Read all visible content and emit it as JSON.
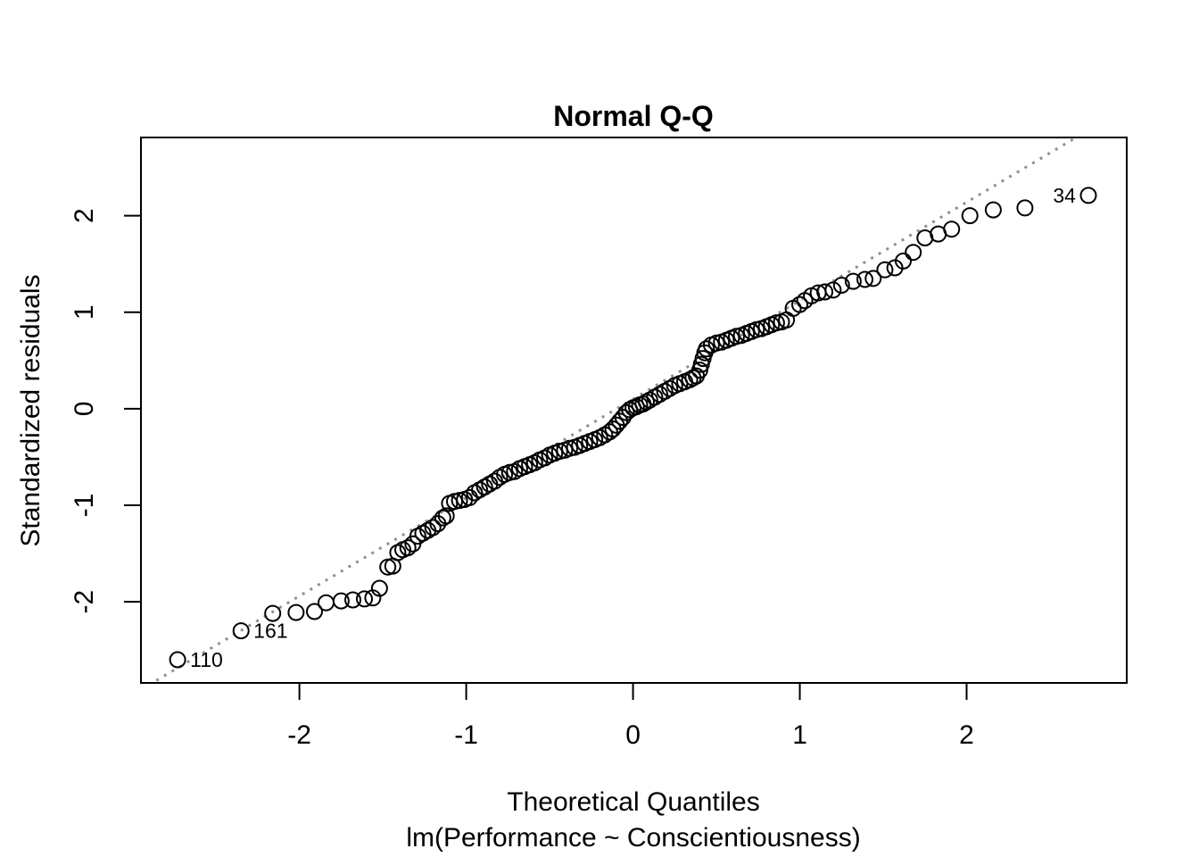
{
  "chart_data": {
    "type": "scatter",
    "title": "Normal Q-Q",
    "xlabel": "Theoretical Quantiles",
    "ylabel": "Standardized residuals",
    "subtitle": "lm(Performance ~ Conscientiousness)",
    "xlim": [
      -2.95,
      2.96
    ],
    "ylim": [
      -2.84,
      2.81
    ],
    "x_ticks": [
      -2,
      -1,
      0,
      1,
      2
    ],
    "y_ticks": [
      -2,
      -1,
      0,
      1,
      2
    ],
    "grid": false,
    "legend": null,
    "colors": {
      "point_stroke": "#000000",
      "reference_line": "#909090",
      "text": "#000000",
      "background": "#ffffff"
    },
    "marker": {
      "shape": "open-circle",
      "radius_px": 8.5,
      "stroke_width": 2
    },
    "reference_line": {
      "style": "dotted",
      "slope": 1.02,
      "intercept": 0.1
    },
    "labeled_points": [
      {
        "label": "110",
        "x": -2.73,
        "y": -2.6,
        "side": "right"
      },
      {
        "label": "161",
        "x": -2.35,
        "y": -2.3,
        "side": "right"
      },
      {
        "label": "34",
        "x": 2.73,
        "y": 2.21,
        "side": "left"
      }
    ],
    "points": [
      [
        -2.73,
        -2.6
      ],
      [
        -2.35,
        -2.3
      ],
      [
        -2.16,
        -2.12
      ],
      [
        -2.02,
        -2.11
      ],
      [
        -1.91,
        -2.1
      ],
      [
        -1.84,
        -2.01
      ],
      [
        -1.75,
        -1.99
      ],
      [
        -1.68,
        -1.98
      ],
      [
        -1.61,
        -1.97
      ],
      [
        -1.56,
        -1.96
      ],
      [
        -1.52,
        -1.86
      ],
      [
        -1.47,
        -1.64
      ],
      [
        -1.44,
        -1.63
      ],
      [
        -1.41,
        -1.49
      ],
      [
        -1.38,
        -1.46
      ],
      [
        -1.35,
        -1.44
      ],
      [
        -1.32,
        -1.4
      ],
      [
        -1.29,
        -1.32
      ],
      [
        -1.26,
        -1.29
      ],
      [
        -1.23,
        -1.26
      ],
      [
        -1.2,
        -1.23
      ],
      [
        -1.17,
        -1.19
      ],
      [
        -1.14,
        -1.13
      ],
      [
        -1.12,
        -1.11
      ],
      [
        -1.1,
        -0.98
      ],
      [
        -1.07,
        -0.96
      ],
      [
        -1.04,
        -0.95
      ],
      [
        -1.01,
        -0.94
      ],
      [
        -0.98,
        -0.92
      ],
      [
        -0.95,
        -0.87
      ],
      [
        -0.92,
        -0.84
      ],
      [
        -0.89,
        -0.81
      ],
      [
        -0.86,
        -0.78
      ],
      [
        -0.83,
        -0.75
      ],
      [
        -0.8,
        -0.71
      ],
      [
        -0.77,
        -0.68
      ],
      [
        -0.74,
        -0.66
      ],
      [
        -0.71,
        -0.65
      ],
      [
        -0.68,
        -0.62
      ],
      [
        -0.65,
        -0.6
      ],
      [
        -0.62,
        -0.58
      ],
      [
        -0.59,
        -0.56
      ],
      [
        -0.56,
        -0.53
      ],
      [
        -0.53,
        -0.51
      ],
      [
        -0.5,
        -0.48
      ],
      [
        -0.47,
        -0.46
      ],
      [
        -0.44,
        -0.44
      ],
      [
        -0.41,
        -0.43
      ],
      [
        -0.38,
        -0.41
      ],
      [
        -0.35,
        -0.4
      ],
      [
        -0.32,
        -0.38
      ],
      [
        -0.29,
        -0.36
      ],
      [
        -0.26,
        -0.34
      ],
      [
        -0.23,
        -0.32
      ],
      [
        -0.2,
        -0.3
      ],
      [
        -0.17,
        -0.27
      ],
      [
        -0.14,
        -0.24
      ],
      [
        -0.12,
        -0.21
      ],
      [
        -0.1,
        -0.17
      ],
      [
        -0.08,
        -0.13
      ],
      [
        -0.06,
        -0.09
      ],
      [
        -0.04,
        -0.04
      ],
      [
        -0.02,
        -0.01
      ],
      [
        0.0,
        0.01
      ],
      [
        0.02,
        0.02
      ],
      [
        0.04,
        0.04
      ],
      [
        0.06,
        0.05
      ],
      [
        0.08,
        0.07
      ],
      [
        0.1,
        0.09
      ],
      [
        0.13,
        0.12
      ],
      [
        0.16,
        0.15
      ],
      [
        0.19,
        0.18
      ],
      [
        0.22,
        0.21
      ],
      [
        0.25,
        0.24
      ],
      [
        0.28,
        0.26
      ],
      [
        0.31,
        0.28
      ],
      [
        0.34,
        0.3
      ],
      [
        0.36,
        0.32
      ],
      [
        0.38,
        0.34
      ],
      [
        0.4,
        0.4
      ],
      [
        0.41,
        0.46
      ],
      [
        0.42,
        0.52
      ],
      [
        0.43,
        0.58
      ],
      [
        0.44,
        0.62
      ],
      [
        0.47,
        0.66
      ],
      [
        0.5,
        0.68
      ],
      [
        0.53,
        0.69
      ],
      [
        0.56,
        0.71
      ],
      [
        0.59,
        0.73
      ],
      [
        0.62,
        0.75
      ],
      [
        0.65,
        0.76
      ],
      [
        0.68,
        0.78
      ],
      [
        0.71,
        0.8
      ],
      [
        0.74,
        0.82
      ],
      [
        0.77,
        0.83
      ],
      [
        0.8,
        0.85
      ],
      [
        0.83,
        0.87
      ],
      [
        0.86,
        0.89
      ],
      [
        0.89,
        0.9
      ],
      [
        0.92,
        0.92
      ],
      [
        0.96,
        1.04
      ],
      [
        1.0,
        1.08
      ],
      [
        1.03,
        1.12
      ],
      [
        1.07,
        1.17
      ],
      [
        1.11,
        1.2
      ],
      [
        1.15,
        1.21
      ],
      [
        1.2,
        1.23
      ],
      [
        1.25,
        1.28
      ],
      [
        1.32,
        1.32
      ],
      [
        1.39,
        1.34
      ],
      [
        1.44,
        1.35
      ],
      [
        1.51,
        1.44
      ],
      [
        1.57,
        1.46
      ],
      [
        1.62,
        1.53
      ],
      [
        1.68,
        1.62
      ],
      [
        1.75,
        1.77
      ],
      [
        1.83,
        1.81
      ],
      [
        1.91,
        1.86
      ],
      [
        2.02,
        2.0
      ],
      [
        2.16,
        2.06
      ],
      [
        2.35,
        2.08
      ],
      [
        2.73,
        2.21
      ]
    ]
  }
}
